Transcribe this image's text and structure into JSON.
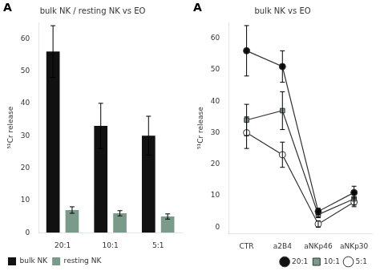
{
  "chart_data": [
    {
      "type": "bar",
      "title": "bulk NK / resting NK vs EO",
      "ylabel": "⁵¹Cr release",
      "categories": [
        "20:1",
        "10:1",
        "5:1"
      ],
      "series": [
        {
          "name": "bulk NK",
          "color": "#111111",
          "values": [
            56,
            33,
            30
          ],
          "errors": [
            8,
            7,
            6
          ]
        },
        {
          "name": "resting NK",
          "color": "#7a9a8a",
          "values": [
            7,
            6,
            5
          ],
          "errors": [
            1.0,
            0.8,
            0.8
          ]
        }
      ],
      "ylim": [
        0,
        65
      ],
      "yticks": [
        0,
        10,
        20,
        30,
        40,
        50,
        60
      ],
      "grid": false,
      "legend": "lower left",
      "annotations": [
        {
          "text": "A"
        }
      ]
    },
    {
      "type": "line",
      "title": "bulk NK vs EO",
      "ylabel": "⁵¹Cr release",
      "categories": [
        "CTR",
        "a2B4",
        "aNKp46",
        "aNKp30"
      ],
      "series": [
        {
          "name": "20:1",
          "color": "#111111",
          "marker": "circle",
          "values": [
            56,
            51,
            5,
            11
          ],
          "errors": [
            8,
            5,
            1,
            2
          ]
        },
        {
          "name": "10:1",
          "color": "#7a9a8a",
          "marker": "square",
          "values": [
            34,
            37,
            4,
            9
          ],
          "errors": [
            5,
            6,
            1,
            2
          ]
        },
        {
          "name": "5:1",
          "color": "#ffffff",
          "marker": "circle",
          "values": [
            30,
            23,
            1,
            8
          ],
          "errors": [
            5,
            4,
            1,
            1.5
          ]
        }
      ],
      "ylim": [
        -2,
        65
      ],
      "yticks": [
        0,
        10,
        20,
        30,
        40,
        50,
        60
      ],
      "grid": false,
      "legend": "lower right",
      "annotations": [
        {
          "text": "A",
          "remove": null
        }
      ]
    }
  ]
}
